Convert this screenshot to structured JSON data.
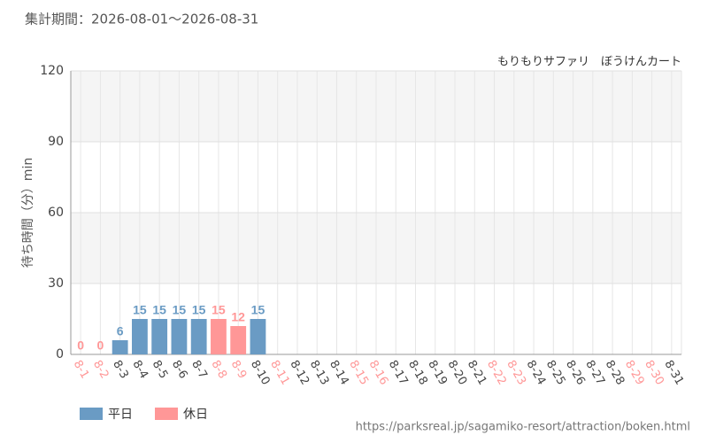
{
  "chart_data": {
    "type": "bar",
    "title": "集計期間：2026-08-01～2026-08-31",
    "subtitle": "もりもりサファリ　ぼうけんカート",
    "y_label": "待ち時間（分）min",
    "source": "https://parksreal.jp/sagamiko-resort/attraction/boken.html",
    "categories": [
      "8-1",
      "8-2",
      "8-3",
      "8-4",
      "8-5",
      "8-6",
      "8-7",
      "8-8",
      "8-9",
      "8-10",
      "8-11",
      "8-12",
      "8-13",
      "8-14",
      "8-15",
      "8-16",
      "8-17",
      "8-18",
      "8-19",
      "8-20",
      "8-21",
      "8-22",
      "8-23",
      "8-24",
      "8-25",
      "8-26",
      "8-27",
      "8-28",
      "8-29",
      "8-30",
      "8-31"
    ],
    "values": [
      0,
      0,
      6,
      15,
      15,
      15,
      15,
      15,
      12,
      15,
      null,
      null,
      null,
      null,
      null,
      null,
      null,
      null,
      null,
      null,
      null,
      null,
      null,
      null,
      null,
      null,
      null,
      null,
      null,
      null,
      null
    ],
    "legend": [
      {
        "name": "平日",
        "color": "#6a9bc4"
      },
      {
        "name": "休日",
        "color": "#ff9797"
      }
    ],
    "category_group": [
      1,
      1,
      0,
      0,
      0,
      0,
      0,
      1,
      1,
      0,
      1,
      0,
      0,
      0,
      1,
      1,
      0,
      0,
      0,
      0,
      0,
      1,
      1,
      0,
      0,
      0,
      0,
      0,
      1,
      1,
      0
    ],
    "ylim": [
      0,
      120
    ],
    "yticks": [
      0,
      30,
      60,
      90,
      120
    ],
    "grid": true
  }
}
